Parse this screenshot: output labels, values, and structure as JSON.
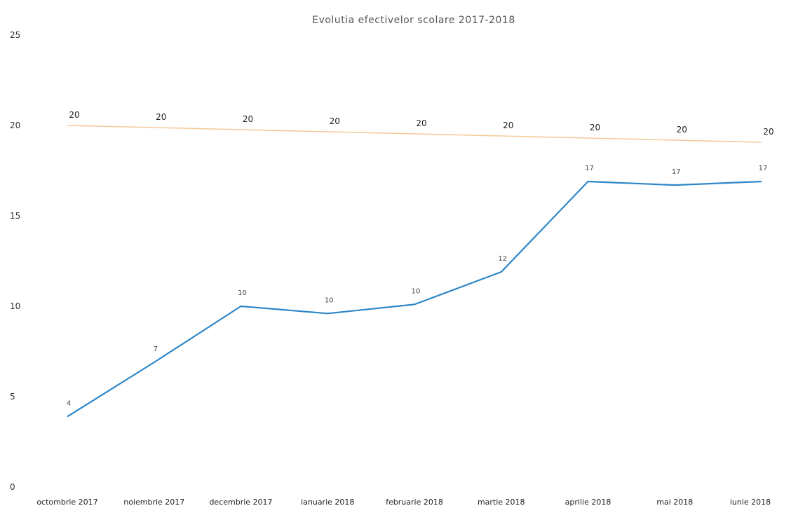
{
  "chart_data": {
    "type": "line",
    "title": "Evolutia efectivelor scolare 2017-2018",
    "categories": [
      "octombrie 2017",
      "noiembrie 2017",
      "decembrie 2017",
      "ianuarie 2018",
      "februarie 2018",
      "martie 2018",
      "aprilie 2018",
      "mai 2018",
      "iunie 2018"
    ],
    "series": [
      {
        "color": "#f5c99a",
        "values": [
          20,
          20,
          20,
          20,
          20,
          20,
          20,
          20,
          20
        ],
        "labels": [
          "20",
          "20",
          "20",
          "20",
          "20",
          "20",
          "20",
          "20",
          "20"
        ]
      },
      {
        "color": "#2e86c8",
        "values": [
          3.9,
          6.9,
          10.0,
          9.6,
          10.1,
          11.9,
          16.9,
          16.7,
          16.9
        ],
        "labels": [
          "4",
          "7",
          "10",
          "10",
          "10",
          "12",
          "17",
          "17",
          "17"
        ]
      }
    ],
    "yticks": [
      "0",
      "5",
      "10",
      "15",
      "20",
      "25"
    ],
    "ylim": [
      0,
      25
    ],
    "grid": false,
    "legend": "none"
  }
}
